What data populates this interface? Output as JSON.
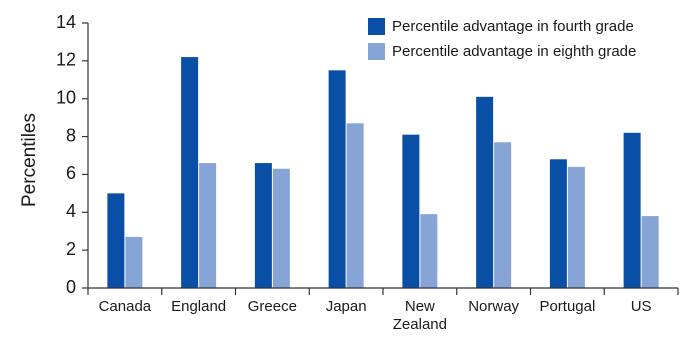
{
  "chart_data": {
    "type": "bar",
    "ylabel": "Percentiles",
    "xlabel": "",
    "ylim": [
      0,
      14
    ],
    "yticks": [
      0,
      2,
      4,
      6,
      8,
      10,
      12,
      14
    ],
    "grid": false,
    "legend_position": "top-right",
    "categories": [
      "Canada",
      "England",
      "Greece",
      "Japan",
      "New Zealand",
      "Norway",
      "Portugal",
      "US"
    ],
    "series": [
      {
        "name": "Percentile advantage in fourth grade",
        "color": "#0a4fa6",
        "values": [
          5.0,
          12.2,
          6.6,
          11.5,
          8.1,
          10.1,
          6.8,
          8.2
        ]
      },
      {
        "name": "Percentile advantage in eighth grade",
        "color": "#86a4d6",
        "values": [
          2.7,
          6.6,
          6.3,
          8.7,
          3.9,
          7.7,
          6.4,
          3.8
        ]
      }
    ]
  }
}
